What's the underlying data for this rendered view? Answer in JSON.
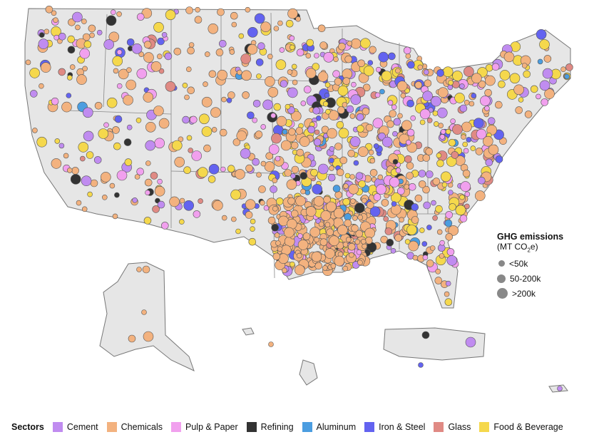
{
  "size_legend": {
    "title": "GHG emissions",
    "unit_prefix": "(MT CO",
    "unit_sub": "2",
    "unit_suffix": "e)",
    "classes": [
      {
        "label": "<50k"
      },
      {
        "label": "50-200k"
      },
      {
        "label": ">200k"
      }
    ]
  },
  "sector_legend": {
    "title": "Sectors",
    "sectors": [
      {
        "label": "Cement",
        "color": "#c08cf0"
      },
      {
        "label": "Chemicals",
        "color": "#f3b27f"
      },
      {
        "label": "Pulp & Paper",
        "color": "#f1a0ee"
      },
      {
        "label": "Refining",
        "color": "#333333"
      },
      {
        "label": "Aluminum",
        "color": "#4b9de0"
      },
      {
        "label": "Iron & Steel",
        "color": "#6363f0"
      },
      {
        "label": "Glass",
        "color": "#e08a84"
      },
      {
        "label": "Food & Beverage",
        "color": "#f5d84c"
      }
    ]
  },
  "map_colors": {
    "land": "#e6e6e6",
    "border": "#777777"
  }
}
